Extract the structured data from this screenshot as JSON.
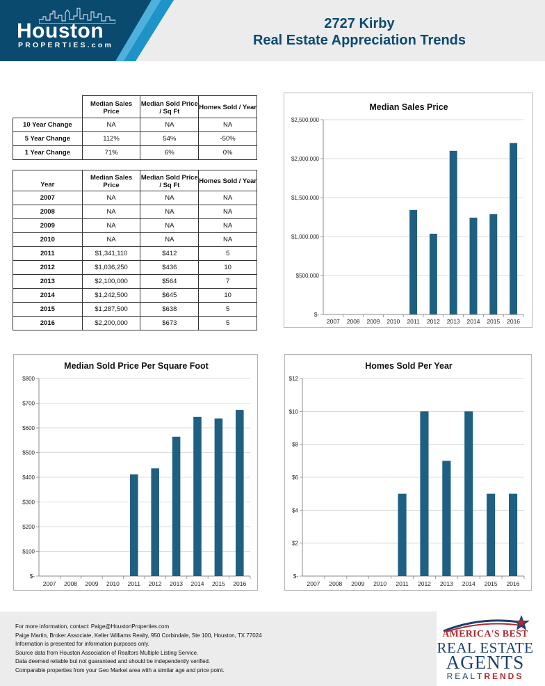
{
  "brand": {
    "logo_main": "Houston",
    "logo_sub": "PROPERTIES.com",
    "primary_color": "#0b4a6f",
    "bar_color": "#1f5f82"
  },
  "header": {
    "title_line1": "2727 Kirby",
    "title_line2": "Real Estate Appreciation Trends"
  },
  "change_table": {
    "headers": [
      "Median Sales Price",
      "Median Sold Price / Sq Ft",
      "Homes Sold / Year"
    ],
    "rows": [
      {
        "label": "10 Year Change",
        "values": [
          "NA",
          "NA",
          "NA"
        ]
      },
      {
        "label": "5 Year Change",
        "values": [
          "112%",
          "54%",
          "-50%"
        ]
      },
      {
        "label": "1 Year Change",
        "values": [
          "71%",
          "6%",
          "0%"
        ]
      }
    ]
  },
  "year_table": {
    "year_header": "Year",
    "headers": [
      "Median Sales Price",
      "Median Sold Price / Sq Ft",
      "Homes Sold / Year"
    ],
    "rows": [
      {
        "year": "2007",
        "values": [
          "NA",
          "NA",
          "NA"
        ]
      },
      {
        "year": "2008",
        "values": [
          "NA",
          "NA",
          "NA"
        ]
      },
      {
        "year": "2009",
        "values": [
          "NA",
          "NA",
          "NA"
        ]
      },
      {
        "year": "2010",
        "values": [
          "NA",
          "NA",
          "NA"
        ]
      },
      {
        "year": "2011",
        "values": [
          "$1,341,110",
          "$412",
          "5"
        ]
      },
      {
        "year": "2012",
        "values": [
          "$1,036,250",
          "$436",
          "10"
        ]
      },
      {
        "year": "2013",
        "values": [
          "$2,100,000",
          "$564",
          "7"
        ]
      },
      {
        "year": "2014",
        "values": [
          "$1,242,500",
          "$645",
          "10"
        ]
      },
      {
        "year": "2015",
        "values": [
          "$1,287,500",
          "$638",
          "5"
        ]
      },
      {
        "year": "2016",
        "values": [
          "$2,200,000",
          "$673",
          "5"
        ]
      }
    ]
  },
  "chart_data": [
    {
      "type": "bar",
      "title": "Median Sales Price",
      "categories": [
        "2007",
        "2008",
        "2009",
        "2010",
        "2011",
        "2012",
        "2013",
        "2014",
        "2015",
        "2016"
      ],
      "values": [
        null,
        null,
        null,
        null,
        1341110,
        1036250,
        2100000,
        1242500,
        1287500,
        2200000
      ],
      "ylim": [
        0,
        2500000
      ],
      "yticks": [
        0,
        500000,
        1000000,
        1500000,
        2000000,
        2500000
      ],
      "ytick_labels": [
        "$-",
        "$500,000",
        "$1,000,000",
        "$1,500,000",
        "$2,000,000",
        "$2,500,000"
      ],
      "grid": true,
      "xlabel": "",
      "ylabel": ""
    },
    {
      "type": "bar",
      "title": "Median Sold Price Per Square Foot",
      "categories": [
        "2007",
        "2008",
        "2009",
        "2010",
        "2011",
        "2012",
        "2013",
        "2014",
        "2015",
        "2016"
      ],
      "values": [
        null,
        null,
        null,
        null,
        412,
        436,
        564,
        645,
        638,
        673
      ],
      "ylim": [
        0,
        800
      ],
      "yticks": [
        0,
        100,
        200,
        300,
        400,
        500,
        600,
        700,
        800
      ],
      "ytick_labels": [
        "$-",
        "$100",
        "$200",
        "$300",
        "$400",
        "$500",
        "$600",
        "$700",
        "$800"
      ],
      "grid": true,
      "xlabel": "",
      "ylabel": ""
    },
    {
      "type": "bar",
      "title": "Homes Sold Per Year",
      "categories": [
        "2007",
        "2008",
        "2009",
        "2010",
        "2011",
        "2012",
        "2013",
        "2014",
        "2015",
        "2016"
      ],
      "values": [
        null,
        null,
        null,
        null,
        5,
        10,
        7,
        10,
        5,
        5
      ],
      "ylim": [
        0,
        12
      ],
      "yticks": [
        0,
        2,
        4,
        6,
        8,
        10,
        12
      ],
      "ytick_labels": [
        "$-",
        "$2",
        "$4",
        "$6",
        "$8",
        "$10",
        "$12"
      ],
      "grid": true,
      "xlabel": "",
      "ylabel": ""
    }
  ],
  "footer": {
    "lines": [
      "For more information, contact: Paige@HoustonProperties.com",
      "Paige Martin, Broker Associate, Keller Williams Realty, 950 Corbindale, Ste 100, Houston, TX 77024",
      "Information is presented for information purposes only.",
      "Source data from Houston Association of Realtors Multiple Listing Service.",
      "Data deemed reliable but not guaranteed and should be independently verified.",
      "Comparable properties from your Geo Market area with a similar age and price point."
    ]
  },
  "badge": {
    "line1": "AMERICA'S BEST",
    "line2": "REAL ESTATE",
    "line3": "AGENTS",
    "line4a": "REAL",
    "line4b": "TRENDS",
    "accent_red": "#b2282f",
    "accent_navy": "#1c3f6e"
  }
}
